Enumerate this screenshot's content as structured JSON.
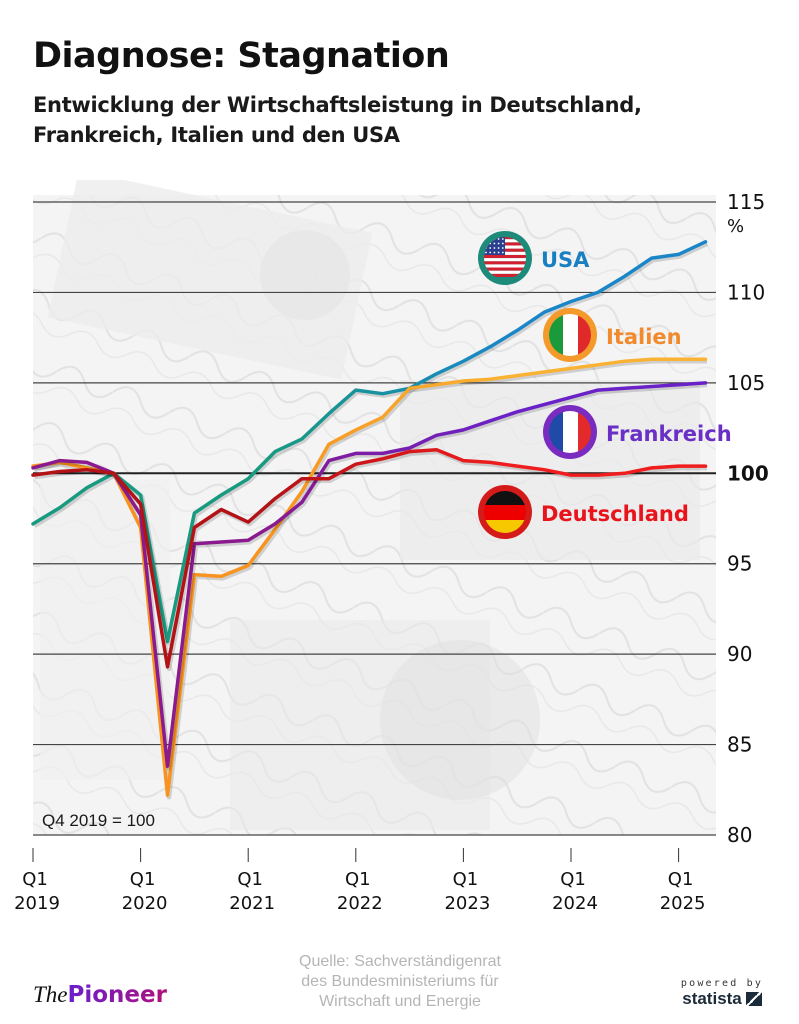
{
  "header": {
    "title": "Diagnose: Stagnation",
    "subtitle_line1": "Entwicklung der Wirtschaftsleistung in Deutschland,",
    "subtitle_line2": "Frankreich, Italien und den USA"
  },
  "footer": {
    "source_line1": "Quelle: Sachverständigenrat",
    "source_line2": "des Bundesministeriums für",
    "source_line3": "Wirtschaft und Energie",
    "logo_the": "The",
    "logo_pioneer": "Pioneer",
    "powered_by": "powered by",
    "statista": "statista"
  },
  "chart_data": {
    "type": "line",
    "title": "Diagnose: Stagnation",
    "subtitle": "Entwicklung der Wirtschaftsleistung in Deutschland, Frankreich, Italien und den USA",
    "annotation": "Q4 2019 = 100",
    "ylabel_unit": "%",
    "ylim": [
      80,
      115
    ],
    "yticks": [
      80,
      85,
      90,
      95,
      100,
      105,
      110,
      115
    ],
    "ytick_labels": [
      "80",
      "85",
      "90",
      "95",
      "100",
      "105",
      "110",
      "115"
    ],
    "bold_ytick": 100,
    "grid": true,
    "x": [
      "Q1 2019",
      "Q2 2019",
      "Q3 2019",
      "Q4 2019",
      "Q1 2020",
      "Q2 2020",
      "Q3 2020",
      "Q4 2020",
      "Q1 2021",
      "Q2 2021",
      "Q3 2021",
      "Q4 2021",
      "Q1 2022",
      "Q2 2022",
      "Q3 2022",
      "Q4 2022",
      "Q1 2023",
      "Q2 2023",
      "Q3 2023",
      "Q4 2023",
      "Q1 2024",
      "Q2 2024",
      "Q3 2024",
      "Q4 2024",
      "Q1 2025",
      "Q2 2025"
    ],
    "xticks": [
      {
        "index": 0,
        "q": "Q1",
        "year": "2019"
      },
      {
        "index": 4,
        "q": "Q1",
        "year": "2020"
      },
      {
        "index": 8,
        "q": "Q1",
        "year": "2021"
      },
      {
        "index": 12,
        "q": "Q1",
        "year": "2022"
      },
      {
        "index": 16,
        "q": "Q1",
        "year": "2023"
      },
      {
        "index": 20,
        "q": "Q1",
        "year": "2024"
      },
      {
        "index": 24,
        "q": "Q1",
        "year": "2025"
      }
    ],
    "series": [
      {
        "name": "USA",
        "label_color": "#1a7fc1",
        "color_start": "#179a80",
        "color_end": "#1a86c8",
        "flag": "us-flag-icon",
        "ring_color": "#1e8a7a",
        "values": [
          97.2,
          98.1,
          99.2,
          100.0,
          98.8,
          90.7,
          97.8,
          98.8,
          99.7,
          101.2,
          101.9,
          103.3,
          104.6,
          104.4,
          104.7,
          105.5,
          106.2,
          107.0,
          107.9,
          108.9,
          109.5,
          110.0,
          110.9,
          111.9,
          112.1,
          112.8
        ]
      },
      {
        "name": "Italien",
        "label_color": "#f08a2c",
        "color_start": "#f7931e",
        "color_end": "#f9b233",
        "flag": "italy-flag-icon",
        "ring_color": "#f39a2a",
        "values": [
          100.4,
          100.6,
          100.3,
          100.0,
          97.0,
          82.2,
          94.4,
          94.3,
          94.9,
          96.9,
          99.0,
          101.6,
          102.4,
          103.1,
          104.7,
          104.9,
          105.1,
          105.2,
          105.4,
          105.6,
          105.8,
          106.0,
          106.2,
          106.3,
          106.3,
          106.3
        ]
      },
      {
        "name": "Frankreich",
        "label_color": "#6a2fc4",
        "color_start": "#8a1a8e",
        "color_end": "#6a22c8",
        "flag": "france-flag-icon",
        "ring_color": "#7a2cc0",
        "values": [
          100.3,
          100.7,
          100.6,
          100.0,
          97.7,
          83.8,
          96.1,
          96.2,
          96.3,
          97.2,
          98.4,
          100.7,
          101.1,
          101.1,
          101.4,
          102.1,
          102.4,
          102.9,
          103.4,
          103.8,
          104.2,
          104.6,
          104.7,
          104.8,
          104.9,
          105.0
        ]
      },
      {
        "name": "Deutschland",
        "label_color": "#e8131b",
        "color_start": "#b31217",
        "color_end": "#ef1d1d",
        "flag": "germany-flag-icon",
        "ring_color": "#d51a1a",
        "values": [
          99.9,
          100.1,
          100.2,
          100.0,
          98.3,
          89.3,
          97.0,
          98.0,
          97.3,
          98.6,
          99.7,
          99.7,
          100.5,
          100.8,
          101.2,
          101.3,
          100.7,
          100.6,
          100.4,
          100.2,
          99.9,
          99.9,
          100.0,
          100.3,
          100.4,
          100.4
        ]
      }
    ],
    "legend": "inline-labels-right"
  }
}
